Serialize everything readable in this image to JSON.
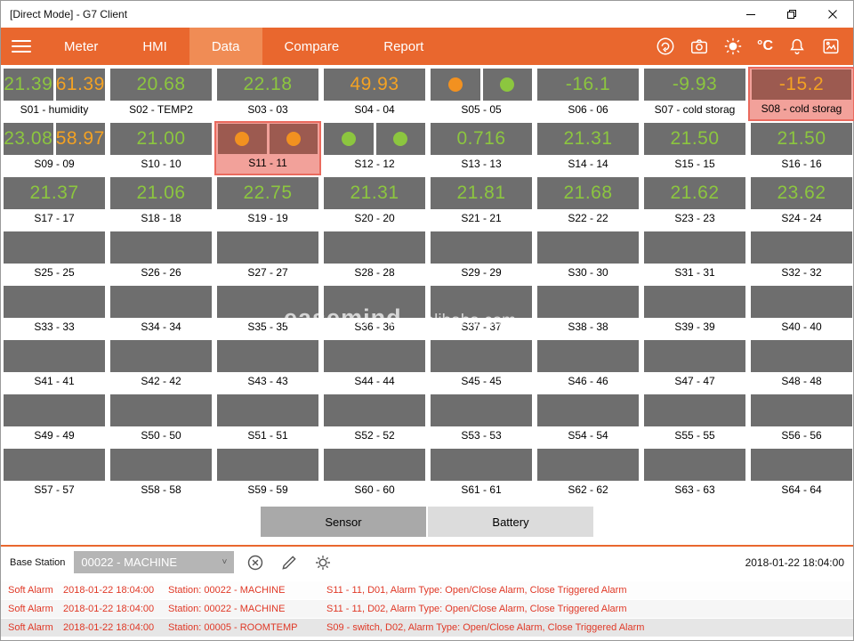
{
  "window": {
    "title": "[Direct Mode] - G7 Client",
    "controls": {
      "minimize": "minimize",
      "restore": "restore",
      "close": "close"
    }
  },
  "nav": {
    "tabs": [
      {
        "label": "Meter"
      },
      {
        "label": "HMI"
      },
      {
        "label": "Data",
        "active": true
      },
      {
        "label": "Compare"
      },
      {
        "label": "Report"
      }
    ],
    "temp_unit": "°C",
    "icons": [
      "sync",
      "camera",
      "brightness",
      "temp-unit",
      "alarm-bell",
      "image"
    ]
  },
  "colors": {
    "accent_orange": "#E9672E",
    "accent_active": "#F08C55",
    "tile_gray": "#6E6E6E",
    "value_green": "#8CC63F",
    "value_orange": "#F4A223",
    "alarm_tile_bg": "#9C5A50",
    "alarm_highlight": "#F2A19A",
    "alarm_text_red": "#E03826"
  },
  "grid": {
    "watermark": [
      "easemind",
      "alibaba.com"
    ],
    "cells": [
      {
        "id": "S01",
        "label": "S01 - humidity",
        "values": [
          {
            "v": "21.39",
            "c": "green"
          },
          {
            "v": "61.39",
            "c": "orange"
          }
        ]
      },
      {
        "id": "S02",
        "label": "S02 - TEMP2",
        "values": [
          {
            "v": "20.68",
            "c": "green"
          }
        ]
      },
      {
        "id": "S03",
        "label": "S03 - 03",
        "values": [
          {
            "v": "22.18",
            "c": "green"
          }
        ]
      },
      {
        "id": "S04",
        "label": "S04 - 04",
        "values": [
          {
            "v": "49.93",
            "c": "orange"
          }
        ]
      },
      {
        "id": "S05",
        "label": "S05 - 05",
        "circles": [
          "orange",
          "green"
        ]
      },
      {
        "id": "S06",
        "label": "S06 - 06",
        "values": [
          {
            "v": "-16.1",
            "c": "green"
          }
        ]
      },
      {
        "id": "S07",
        "label": "S07 - cold storag",
        "values": [
          {
            "v": "-9.93",
            "c": "green"
          }
        ]
      },
      {
        "id": "S08",
        "label": "S08 - cold storag",
        "alarm": true,
        "values": [
          {
            "v": "-15.2",
            "c": "orange"
          }
        ]
      },
      {
        "id": "S09",
        "label": "S09 - 09",
        "values": [
          {
            "v": "23.08",
            "c": "green"
          },
          {
            "v": "58.97",
            "c": "orange"
          }
        ]
      },
      {
        "id": "S10",
        "label": "S10 - 10",
        "values": [
          {
            "v": "21.00",
            "c": "green"
          }
        ]
      },
      {
        "id": "S11",
        "label": "S11 - 11",
        "alarm": true,
        "circles": [
          "orange",
          "orange"
        ]
      },
      {
        "id": "S12",
        "label": "S12 - 12",
        "circles": [
          "green",
          "green"
        ]
      },
      {
        "id": "S13",
        "label": "S13 - 13",
        "values": [
          {
            "v": "0.716",
            "c": "green"
          }
        ]
      },
      {
        "id": "S14",
        "label": "S14 - 14",
        "values": [
          {
            "v": "21.31",
            "c": "green"
          }
        ]
      },
      {
        "id": "S15",
        "label": "S15 - 15",
        "values": [
          {
            "v": "21.50",
            "c": "green"
          }
        ]
      },
      {
        "id": "S16",
        "label": "S16 - 16",
        "values": [
          {
            "v": "21.50",
            "c": "green"
          }
        ]
      },
      {
        "id": "S17",
        "label": "S17 - 17",
        "values": [
          {
            "v": "21.37",
            "c": "green"
          }
        ]
      },
      {
        "id": "S18",
        "label": "S18 - 18",
        "values": [
          {
            "v": "21.06",
            "c": "green"
          }
        ]
      },
      {
        "id": "S19",
        "label": "S19 - 19",
        "values": [
          {
            "v": "22.75",
            "c": "green"
          }
        ]
      },
      {
        "id": "S20",
        "label": "S20 - 20",
        "values": [
          {
            "v": "21.31",
            "c": "green"
          }
        ]
      },
      {
        "id": "S21",
        "label": "S21 - 21",
        "values": [
          {
            "v": "21.81",
            "c": "green"
          }
        ]
      },
      {
        "id": "S22",
        "label": "S22 - 22",
        "values": [
          {
            "v": "21.68",
            "c": "green"
          }
        ]
      },
      {
        "id": "S23",
        "label": "S23 - 23",
        "values": [
          {
            "v": "21.62",
            "c": "green"
          }
        ]
      },
      {
        "id": "S24",
        "label": "S24 - 24",
        "values": [
          {
            "v": "23.62",
            "c": "green"
          }
        ]
      },
      {
        "id": "S25",
        "label": "S25 - 25",
        "values": []
      },
      {
        "id": "S26",
        "label": "S26 - 26",
        "values": []
      },
      {
        "id": "S27",
        "label": "S27 - 27",
        "values": []
      },
      {
        "id": "S28",
        "label": "S28 - 28",
        "values": []
      },
      {
        "id": "S29",
        "label": "S29 - 29",
        "values": []
      },
      {
        "id": "S30",
        "label": "S30 - 30",
        "values": []
      },
      {
        "id": "S31",
        "label": "S31 - 31",
        "values": []
      },
      {
        "id": "S32",
        "label": "S32 - 32",
        "values": []
      },
      {
        "id": "S33",
        "label": "S33 - 33",
        "values": []
      },
      {
        "id": "S34",
        "label": "S34 - 34",
        "values": []
      },
      {
        "id": "S35",
        "label": "S35 - 35",
        "values": []
      },
      {
        "id": "S36",
        "label": "S36 - 36",
        "values": []
      },
      {
        "id": "S37",
        "label": "S37 - 37",
        "values": []
      },
      {
        "id": "S38",
        "label": "S38 - 38",
        "values": []
      },
      {
        "id": "S39",
        "label": "S39 - 39",
        "values": []
      },
      {
        "id": "S40",
        "label": "S40 - 40",
        "values": []
      },
      {
        "id": "S41",
        "label": "S41 - 41",
        "values": []
      },
      {
        "id": "S42",
        "label": "S42 - 42",
        "values": []
      },
      {
        "id": "S43",
        "label": "S43 - 43",
        "values": []
      },
      {
        "id": "S44",
        "label": "S44 - 44",
        "values": []
      },
      {
        "id": "S45",
        "label": "S45 - 45",
        "values": []
      },
      {
        "id": "S46",
        "label": "S46 - 46",
        "values": []
      },
      {
        "id": "S47",
        "label": "S47 - 47",
        "values": []
      },
      {
        "id": "S48",
        "label": "S48 - 48",
        "values": []
      },
      {
        "id": "S49",
        "label": "S49 - 49",
        "values": []
      },
      {
        "id": "S50",
        "label": "S50 - 50",
        "values": []
      },
      {
        "id": "S51",
        "label": "S51 - 51",
        "values": []
      },
      {
        "id": "S52",
        "label": "S52 - 52",
        "values": []
      },
      {
        "id": "S53",
        "label": "S53 - 53",
        "values": []
      },
      {
        "id": "S54",
        "label": "S54 - 54",
        "values": []
      },
      {
        "id": "S55",
        "label": "S55 - 55",
        "values": []
      },
      {
        "id": "S56",
        "label": "S56 - 56",
        "values": []
      },
      {
        "id": "S57",
        "label": "S57 - 57",
        "values": []
      },
      {
        "id": "S58",
        "label": "S58 - 58",
        "values": []
      },
      {
        "id": "S59",
        "label": "S59 - 59",
        "values": []
      },
      {
        "id": "S60",
        "label": "S60 - 60",
        "values": []
      },
      {
        "id": "S61",
        "label": "S61 - 61",
        "values": []
      },
      {
        "id": "S62",
        "label": "S62 - 62",
        "values": []
      },
      {
        "id": "S63",
        "label": "S63 - 63",
        "values": []
      },
      {
        "id": "S64",
        "label": "S64 - 64",
        "values": []
      }
    ]
  },
  "footer": {
    "sensor_button": "Sensor",
    "battery_button": "Battery",
    "base_station_label": "Base Station",
    "station_value": "00022 - MACHINE",
    "chevron": "˅",
    "timestamp": "2018-01-22 18:04:00",
    "alarms": [
      {
        "type": "Soft Alarm",
        "time": "2018-01-22 18:04:00",
        "station": "Station: 00022 - MACHINE",
        "detail": "S11 - 11, D01, Alarm Type: Open/Close Alarm, Close Triggered Alarm"
      },
      {
        "type": "Soft Alarm",
        "time": "2018-01-22 18:04:00",
        "station": "Station: 00022 - MACHINE",
        "detail": "S11 - 11, D02, Alarm Type: Open/Close Alarm, Close Triggered Alarm"
      },
      {
        "type": "Soft Alarm",
        "time": "2018-01-22 18:04:00",
        "station": "Station: 00005 - ROOMTEMP",
        "detail": "S09 - switch, D02, Alarm Type: Open/Close Alarm, Close Triggered Alarm"
      }
    ]
  }
}
